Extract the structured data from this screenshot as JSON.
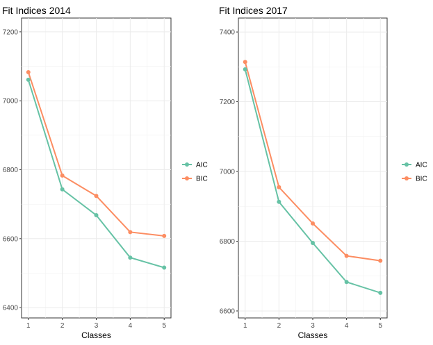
{
  "chart_data": [
    {
      "type": "line",
      "title": "Fit Indices 2014",
      "xlabel": "Classes",
      "ylabel": "",
      "x": [
        1,
        2,
        3,
        4,
        5
      ],
      "ylim": [
        6370,
        7240
      ],
      "yticks": [
        6400,
        6600,
        6800,
        7000,
        7200
      ],
      "grid": true,
      "legend_position": "right",
      "series": [
        {
          "name": "AIC",
          "color": "#66c2a5",
          "values": [
            7061,
            6743,
            6668,
            6545,
            6516
          ]
        },
        {
          "name": "BIC",
          "color": "#fc8d62",
          "values": [
            7083,
            6783,
            6724,
            6619,
            6608
          ]
        }
      ]
    },
    {
      "type": "line",
      "title": "Fit Indices 2017",
      "xlabel": "Classes",
      "ylabel": "",
      "x": [
        1,
        2,
        3,
        4,
        5
      ],
      "ylim": [
        6580,
        7440
      ],
      "yticks": [
        6600,
        6800,
        7000,
        7200,
        7400
      ],
      "grid": true,
      "legend_position": "right",
      "series": [
        {
          "name": "AIC",
          "color": "#66c2a5",
          "values": [
            7293,
            6913,
            6795,
            6683,
            6652
          ]
        },
        {
          "name": "BIC",
          "color": "#fc8d62",
          "values": [
            7314,
            6955,
            6851,
            6758,
            6744
          ]
        }
      ]
    }
  ]
}
